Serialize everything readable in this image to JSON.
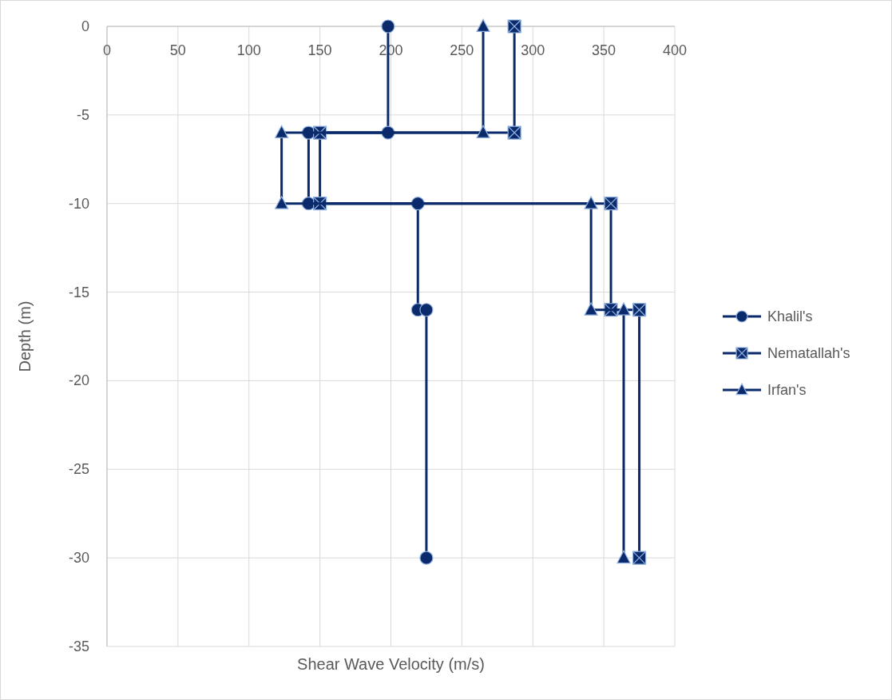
{
  "chart_data": {
    "type": "line",
    "xlabel": "Shear Wave Velocity (m/s)",
    "ylabel": "Depth (m)",
    "xlim": [
      0,
      400
    ],
    "xticks": [
      0,
      50,
      100,
      150,
      200,
      250,
      300,
      350,
      400
    ],
    "ylim": [
      -35,
      0
    ],
    "yticks": [
      -35,
      -30,
      -25,
      -20,
      -15,
      -10,
      -5,
      0
    ],
    "grid": true,
    "legend": "right",
    "line_style": "solid",
    "series": [
      {
        "name": "Khalil's",
        "color": "#0b2a6b",
        "marker": "circle",
        "x": [
          198,
          198,
          142,
          142,
          219,
          219,
          225,
          225
        ],
        "values": [
          0,
          -6,
          -6,
          -10,
          -10,
          -16,
          -16,
          -30
        ]
      },
      {
        "name": "Nematallah's",
        "color": "#0b2a6b",
        "marker": "square",
        "x": [
          287,
          287,
          150,
          150,
          355,
          355,
          375,
          375
        ],
        "values": [
          0,
          -6,
          -6,
          -10,
          -10,
          -16,
          -16,
          -30
        ]
      },
      {
        "name": "Irfan's",
        "color": "#0b2a6b",
        "marker": "triangle",
        "x": [
          265,
          265,
          123,
          123,
          341,
          341,
          364,
          364
        ],
        "values": [
          0,
          -6,
          -6,
          -10,
          -10,
          -16,
          -16,
          -30
        ]
      }
    ]
  }
}
